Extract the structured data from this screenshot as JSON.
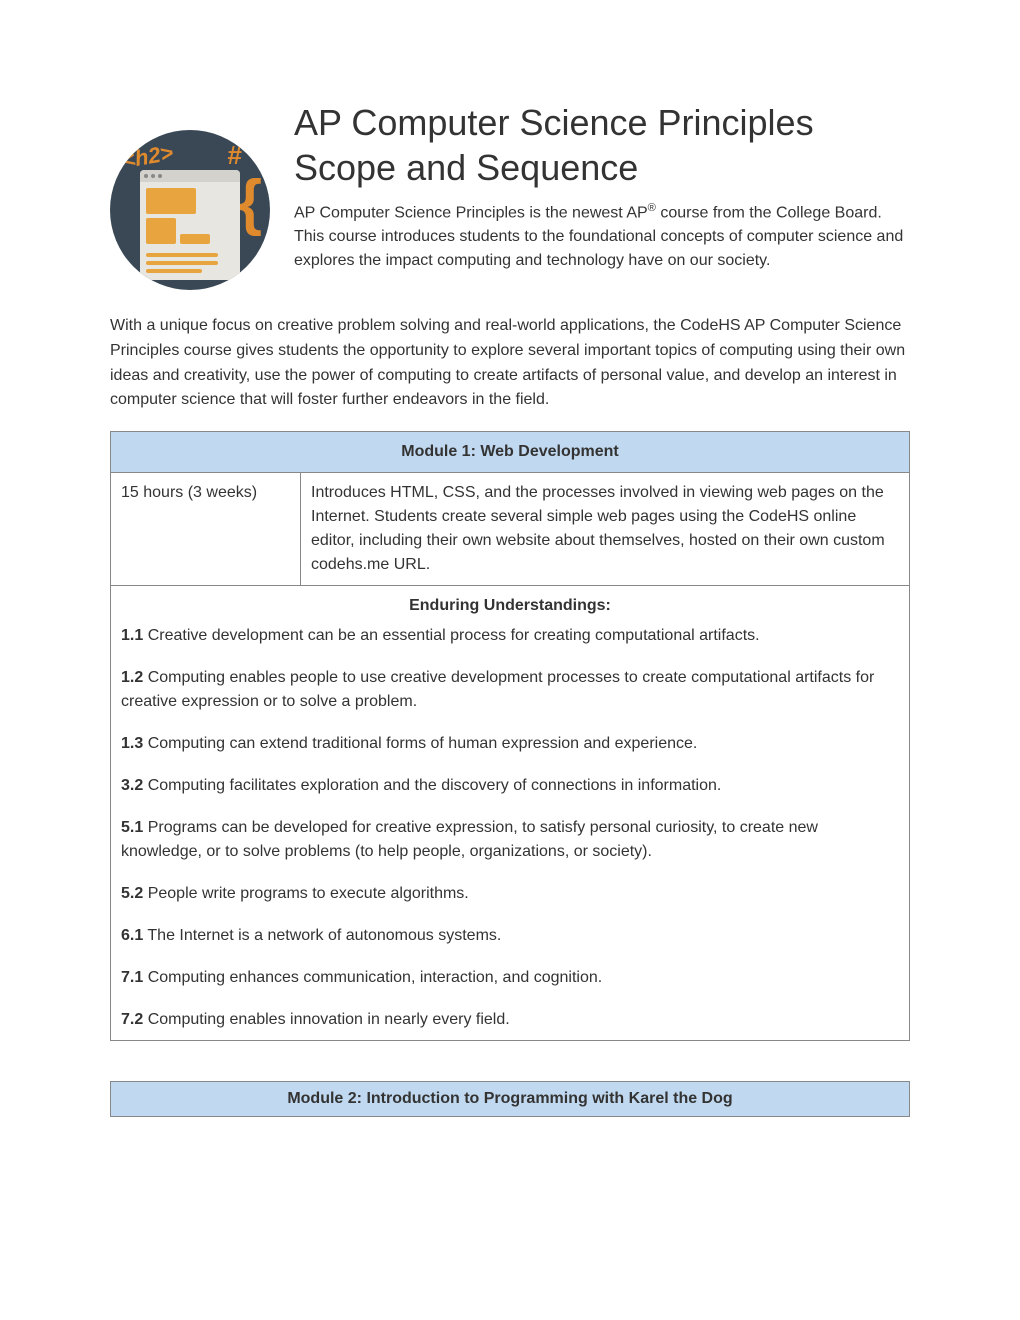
{
  "header": {
    "title": "AP Computer Science Principles Scope and Sequence",
    "intro1": "AP Computer Science Principles is the newest AP® course from the College Board. This course introduces students to the foundational concepts of computer science and explores the impact computing and technology have on our society."
  },
  "body_para": "With a unique focus on creative problem solving and real-world applications, the CodeHS AP Computer Science Principles course gives students the opportunity to explore several important topics of computing using their own ideas and creativity, use the power of computing to create artifacts of personal value, and develop an interest in computer science that will foster further endeavors in the field.",
  "module1": {
    "title": "Module 1: Web Development",
    "duration": "15 hours (3 weeks)",
    "description": "Introduces HTML, CSS, and the processes involved in viewing web pages on the Internet. Students create several simple web pages using the CodeHS online editor, including their own website about themselves, hosted on their own custom codehs.me URL.",
    "eu_heading": "Enduring Understandings:",
    "understandings": [
      {
        "num": "1.1",
        "text": " Creative development can be an essential process for creating computational artifacts."
      },
      {
        "num": "1.2",
        "text": " Computing enables people to use creative development processes to create computational artifacts for creative expression or to solve a problem."
      },
      {
        "num": "1.3",
        "text": " Computing can extend traditional forms of human expression and experience."
      },
      {
        "num": "3.2",
        "text": " Computing facilitates exploration and the discovery of connections in information."
      },
      {
        "num": "5.1",
        "text": " Programs can be developed for creative expression, to satisfy personal curiosity, to create new knowledge, or to solve problems (to help people, organizations, or society)."
      },
      {
        "num": "5.2",
        "text": " People write programs to execute algorithms."
      },
      {
        "num": "6.1",
        "text": " The Internet is a network of autonomous systems."
      },
      {
        "num": "7.1",
        "text": " Computing enhances communication, interaction, and cognition."
      },
      {
        "num": "7.2",
        "text": " Computing enables innovation in nearly every field."
      }
    ]
  },
  "module2": {
    "title": "Module 2: Introduction to Programming with Karel the Dog"
  },
  "colors": {
    "header_bg": "#c1d9f0",
    "border": "#888888",
    "text": "#333333",
    "logo_bg": "#3a4856",
    "logo_accent": "#e08a2e",
    "logo_block": "#e8a43e"
  },
  "logo": {
    "h2_text": "<h2>",
    "hash": "#",
    "brace": "{"
  }
}
